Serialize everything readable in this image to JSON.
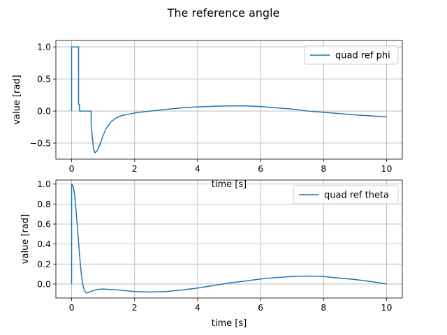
{
  "figure": {
    "title": "The reference angle"
  },
  "chart_data": [
    {
      "type": "line",
      "xlabel": "time [s]",
      "ylabel": "value [rad]",
      "xlim": [
        -0.5,
        10.5
      ],
      "ylim": [
        -0.75,
        1.1
      ],
      "x_ticks": [
        0,
        2,
        4,
        6,
        8,
        10
      ],
      "x_tick_labels": [
        "0",
        "2",
        "4",
        "6",
        "8",
        "10"
      ],
      "y_ticks": [
        1.0,
        0.5,
        0.0,
        -0.5
      ],
      "y_tick_labels": [
        "1.0",
        "0.5",
        "0.0",
        "−0.5"
      ],
      "grid": true,
      "legend_position": "upper right",
      "series": [
        {
          "name": "quad ref phi",
          "color": "#1f77b4",
          "points": [
            [
              0,
              0
            ],
            [
              0,
              1.0
            ],
            [
              0.22,
              1.0
            ],
            [
              0.22,
              0.1
            ],
            [
              0.25,
              0.1
            ],
            [
              0.25,
              0
            ],
            [
              0.62,
              0
            ],
            [
              0.62,
              -0.2
            ],
            [
              0.65,
              -0.38
            ],
            [
              0.7,
              -0.6
            ],
            [
              0.74,
              -0.65
            ],
            [
              0.8,
              -0.63
            ],
            [
              0.9,
              -0.52
            ],
            [
              1.0,
              -0.38
            ],
            [
              1.1,
              -0.27
            ],
            [
              1.25,
              -0.17
            ],
            [
              1.4,
              -0.11
            ],
            [
              1.6,
              -0.07
            ],
            [
              1.8,
              -0.05
            ],
            [
              2.0,
              -0.03
            ],
            [
              2.5,
              0.0
            ],
            [
              3.0,
              0.025
            ],
            [
              3.5,
              0.05
            ],
            [
              4.0,
              0.065
            ],
            [
              4.5,
              0.075
            ],
            [
              5.0,
              0.08
            ],
            [
              5.5,
              0.08
            ],
            [
              6.0,
              0.07
            ],
            [
              6.5,
              0.05
            ],
            [
              7.0,
              0.03
            ],
            [
              7.5,
              0.0
            ],
            [
              8.0,
              -0.02
            ],
            [
              8.5,
              -0.04
            ],
            [
              9.0,
              -0.06
            ],
            [
              9.5,
              -0.075
            ],
            [
              10.0,
              -0.09
            ]
          ]
        }
      ]
    },
    {
      "type": "line",
      "xlabel": "time [s]",
      "ylabel": "value [rad]",
      "xlim": [
        -0.5,
        10.5
      ],
      "ylim": [
        -0.14,
        1.04
      ],
      "x_ticks": [
        0,
        2,
        4,
        6,
        8,
        10
      ],
      "x_tick_labels": [
        "0",
        "2",
        "4",
        "6",
        "8",
        "10"
      ],
      "y_ticks": [
        1.0,
        0.8,
        0.6,
        0.4,
        0.2,
        0.0
      ],
      "y_tick_labels": [
        "1.0",
        "0.8",
        "0.6",
        "0.4",
        "0.2",
        "0.0"
      ],
      "grid": true,
      "legend_position": "upper right",
      "series": [
        {
          "name": "quad ref theta",
          "color": "#1f77b4",
          "points": [
            [
              0,
              0
            ],
            [
              0,
              1.0
            ],
            [
              0.05,
              0.98
            ],
            [
              0.1,
              0.88
            ],
            [
              0.15,
              0.7
            ],
            [
              0.2,
              0.5
            ],
            [
              0.25,
              0.3
            ],
            [
              0.3,
              0.12
            ],
            [
              0.35,
              0.0
            ],
            [
              0.4,
              -0.06
            ],
            [
              0.45,
              -0.085
            ],
            [
              0.5,
              -0.09
            ],
            [
              0.6,
              -0.075
            ],
            [
              0.8,
              -0.055
            ],
            [
              1.0,
              -0.05
            ],
            [
              1.5,
              -0.06
            ],
            [
              2.0,
              -0.075
            ],
            [
              2.5,
              -0.08
            ],
            [
              3.0,
              -0.075
            ],
            [
              3.5,
              -0.06
            ],
            [
              4.0,
              -0.04
            ],
            [
              4.5,
              -0.015
            ],
            [
              5.0,
              0.01
            ],
            [
              5.5,
              0.03
            ],
            [
              6.0,
              0.05
            ],
            [
              6.5,
              0.065
            ],
            [
              7.0,
              0.075
            ],
            [
              7.5,
              0.08
            ],
            [
              8.0,
              0.075
            ],
            [
              8.5,
              0.06
            ],
            [
              9.0,
              0.045
            ],
            [
              9.5,
              0.025
            ],
            [
              10.0,
              0.0
            ]
          ]
        }
      ]
    }
  ]
}
